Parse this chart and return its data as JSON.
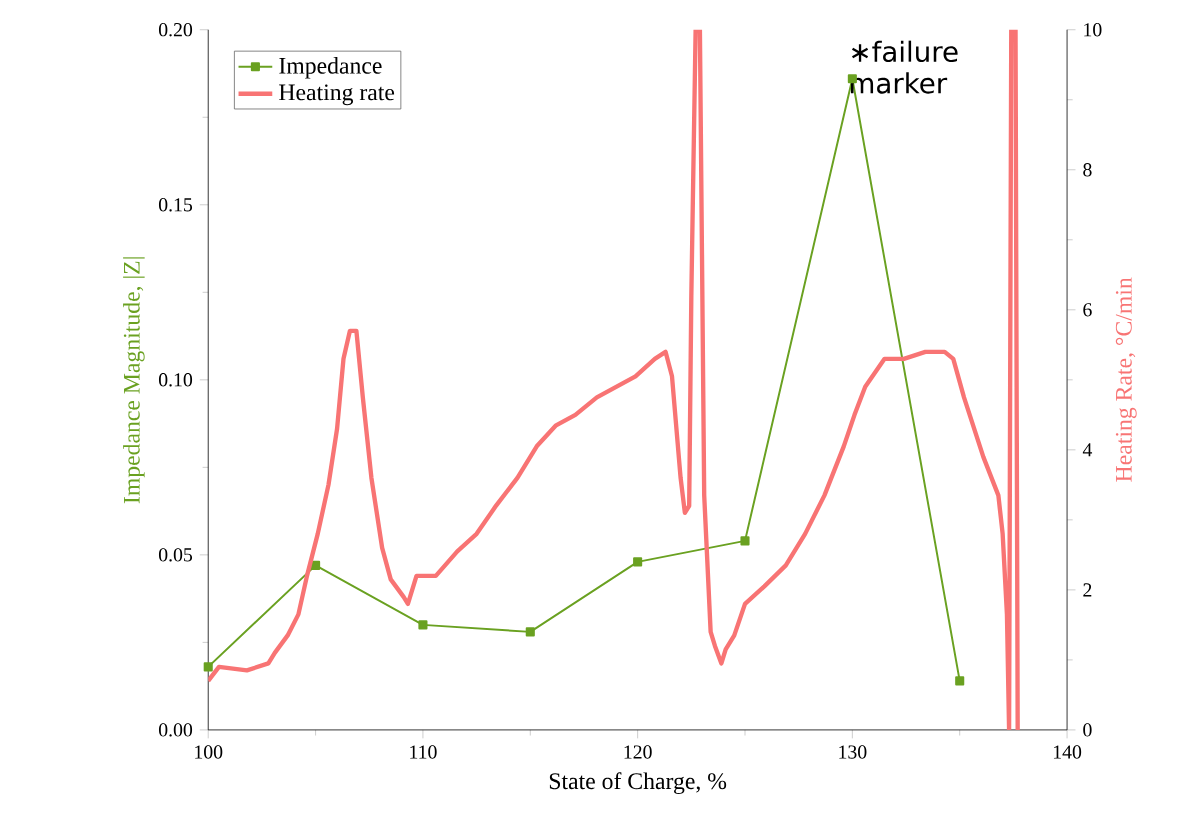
{
  "chart_data": {
    "type": "line",
    "xlabel": "State of Charge, %",
    "ylabel": "Impedance Magnitude, |Z|",
    "y2label": "Heating Rate, °C/min",
    "xlim": [
      100,
      140
    ],
    "xticks": [
      100,
      110,
      120,
      130,
      140
    ],
    "ylim": [
      0,
      0.2
    ],
    "yticks": [
      {
        "value": 0,
        "label": "0.00"
      },
      {
        "value": 0.05,
        "label": "0.05"
      },
      {
        "value": 0.1,
        "label": "0.10"
      },
      {
        "value": 0.15,
        "label": "0.15"
      },
      {
        "value": 0.2,
        "label": "0.20"
      }
    ],
    "y2lim": [
      0,
      10
    ],
    "y2ticks": [
      0,
      2,
      4,
      6,
      8,
      10
    ],
    "legend": "top left",
    "grid": false,
    "annotations": [
      "∗failure marker"
    ],
    "series": [
      {
        "name": "Impedance",
        "color": "#6aa121",
        "marker": "square",
        "line_style": "solid",
        "x": [
          100,
          105,
          110,
          115,
          120,
          125,
          130,
          135
        ],
        "values": [
          0.018,
          0.047,
          0.03,
          0.028,
          0.048,
          0.054,
          0.186,
          0.014
        ]
      },
      {
        "name": "Heating rate",
        "color": "#f87474",
        "marker": "none",
        "line_style": "solid",
        "axis": "y2",
        "x": [
          100,
          100.5,
          101.8,
          102.8,
          103.1,
          103.7,
          104.2,
          104.6,
          105.1,
          105.6,
          106.0,
          106.3,
          106.6,
          106.9,
          107.2,
          107.6,
          108.1,
          108.5,
          109.1,
          109.3,
          109.7,
          110.6,
          111.6,
          112.5,
          113.4,
          114.4,
          115.3,
          116.2,
          117.1,
          118.1,
          119.0,
          119.9,
          120.8,
          121.3,
          121.6,
          122.0,
          122.2,
          122.4,
          122.5,
          122.7,
          122.9,
          123.1,
          123.4,
          123.6,
          123.9,
          124.1,
          124.5,
          125.0,
          125.9,
          126.9,
          127.8,
          128.7,
          129.6,
          130.1,
          130.6,
          131.5,
          132.4,
          133.4,
          134.3,
          134.7,
          135.2,
          136.1,
          136.8,
          137.0,
          137.2,
          137.3,
          137.4,
          137.6,
          137.7
        ],
        "values": [
          0.7,
          0.9,
          0.85,
          0.95,
          1.1,
          1.35,
          1.65,
          2.2,
          2.8,
          3.5,
          4.3,
          5.3,
          5.7,
          5.7,
          4.75,
          3.6,
          2.6,
          2.15,
          1.9,
          1.8,
          2.2,
          2.2,
          2.55,
          2.8,
          3.2,
          3.6,
          4.05,
          4.35,
          4.5,
          4.75,
          4.9,
          5.05,
          5.3,
          5.4,
          5.05,
          3.6,
          3.1,
          3.2,
          6.2,
          10,
          10,
          3.35,
          1.4,
          1.2,
          0.95,
          1.15,
          1.35,
          1.8,
          2.05,
          2.35,
          2.8,
          3.35,
          4.05,
          4.5,
          4.9,
          5.3,
          5.3,
          5.4,
          5.4,
          5.3,
          4.75,
          3.9,
          3.35,
          2.8,
          1.65,
          0,
          10,
          10,
          0
        ]
      }
    ]
  }
}
